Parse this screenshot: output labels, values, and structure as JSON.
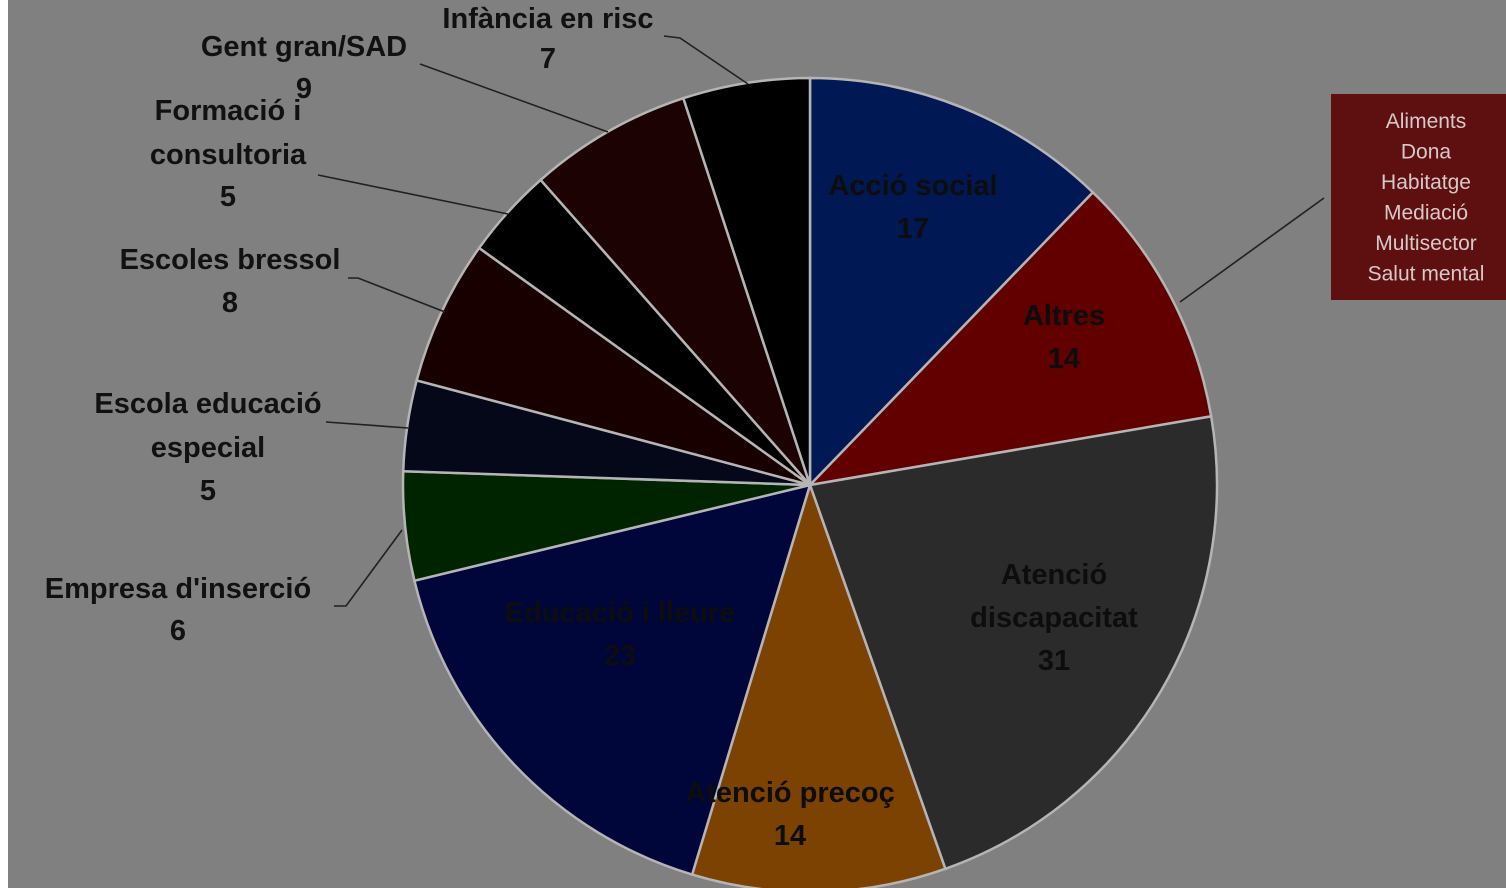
{
  "chart_data": {
    "type": "pie",
    "title": "",
    "start_angle_deg": 0,
    "direction": "clockwise",
    "slices": [
      {
        "label": "Acció social",
        "value": 17,
        "color": "#001955"
      },
      {
        "label": "Altres",
        "value": 14,
        "color": "#620000"
      },
      {
        "label": "Atenció discapacitat",
        "value": 31,
        "color": "#2b2b2b"
      },
      {
        "label": "Atenció precoç",
        "value": 14,
        "color": "#7c4202"
      },
      {
        "label": "Educació i lleure",
        "value": 23,
        "color": "#00063a"
      },
      {
        "label": "Empresa d'inserció",
        "value": 6,
        "color": "#002400"
      },
      {
        "label": "Escola educació especial",
        "value": 5,
        "color": "#050818"
      },
      {
        "label": "Escoles bressol",
        "value": 8,
        "color": "#180000"
      },
      {
        "label": "Formació i consultoria",
        "value": 5,
        "color": "#000000"
      },
      {
        "label": "Gent gran/SAD",
        "value": 9,
        "color": "#1c0202"
      },
      {
        "label": "Infància en risc",
        "value": 7,
        "color": "#000000"
      }
    ],
    "slice_border_color": "#b5b5b5",
    "callout": {
      "attached_to": "Altres",
      "background": "#5e0f10",
      "items": [
        "Aliments",
        "Dona",
        "Habitatge",
        "Mediació",
        "Multisector",
        "Salut mental"
      ]
    }
  }
}
